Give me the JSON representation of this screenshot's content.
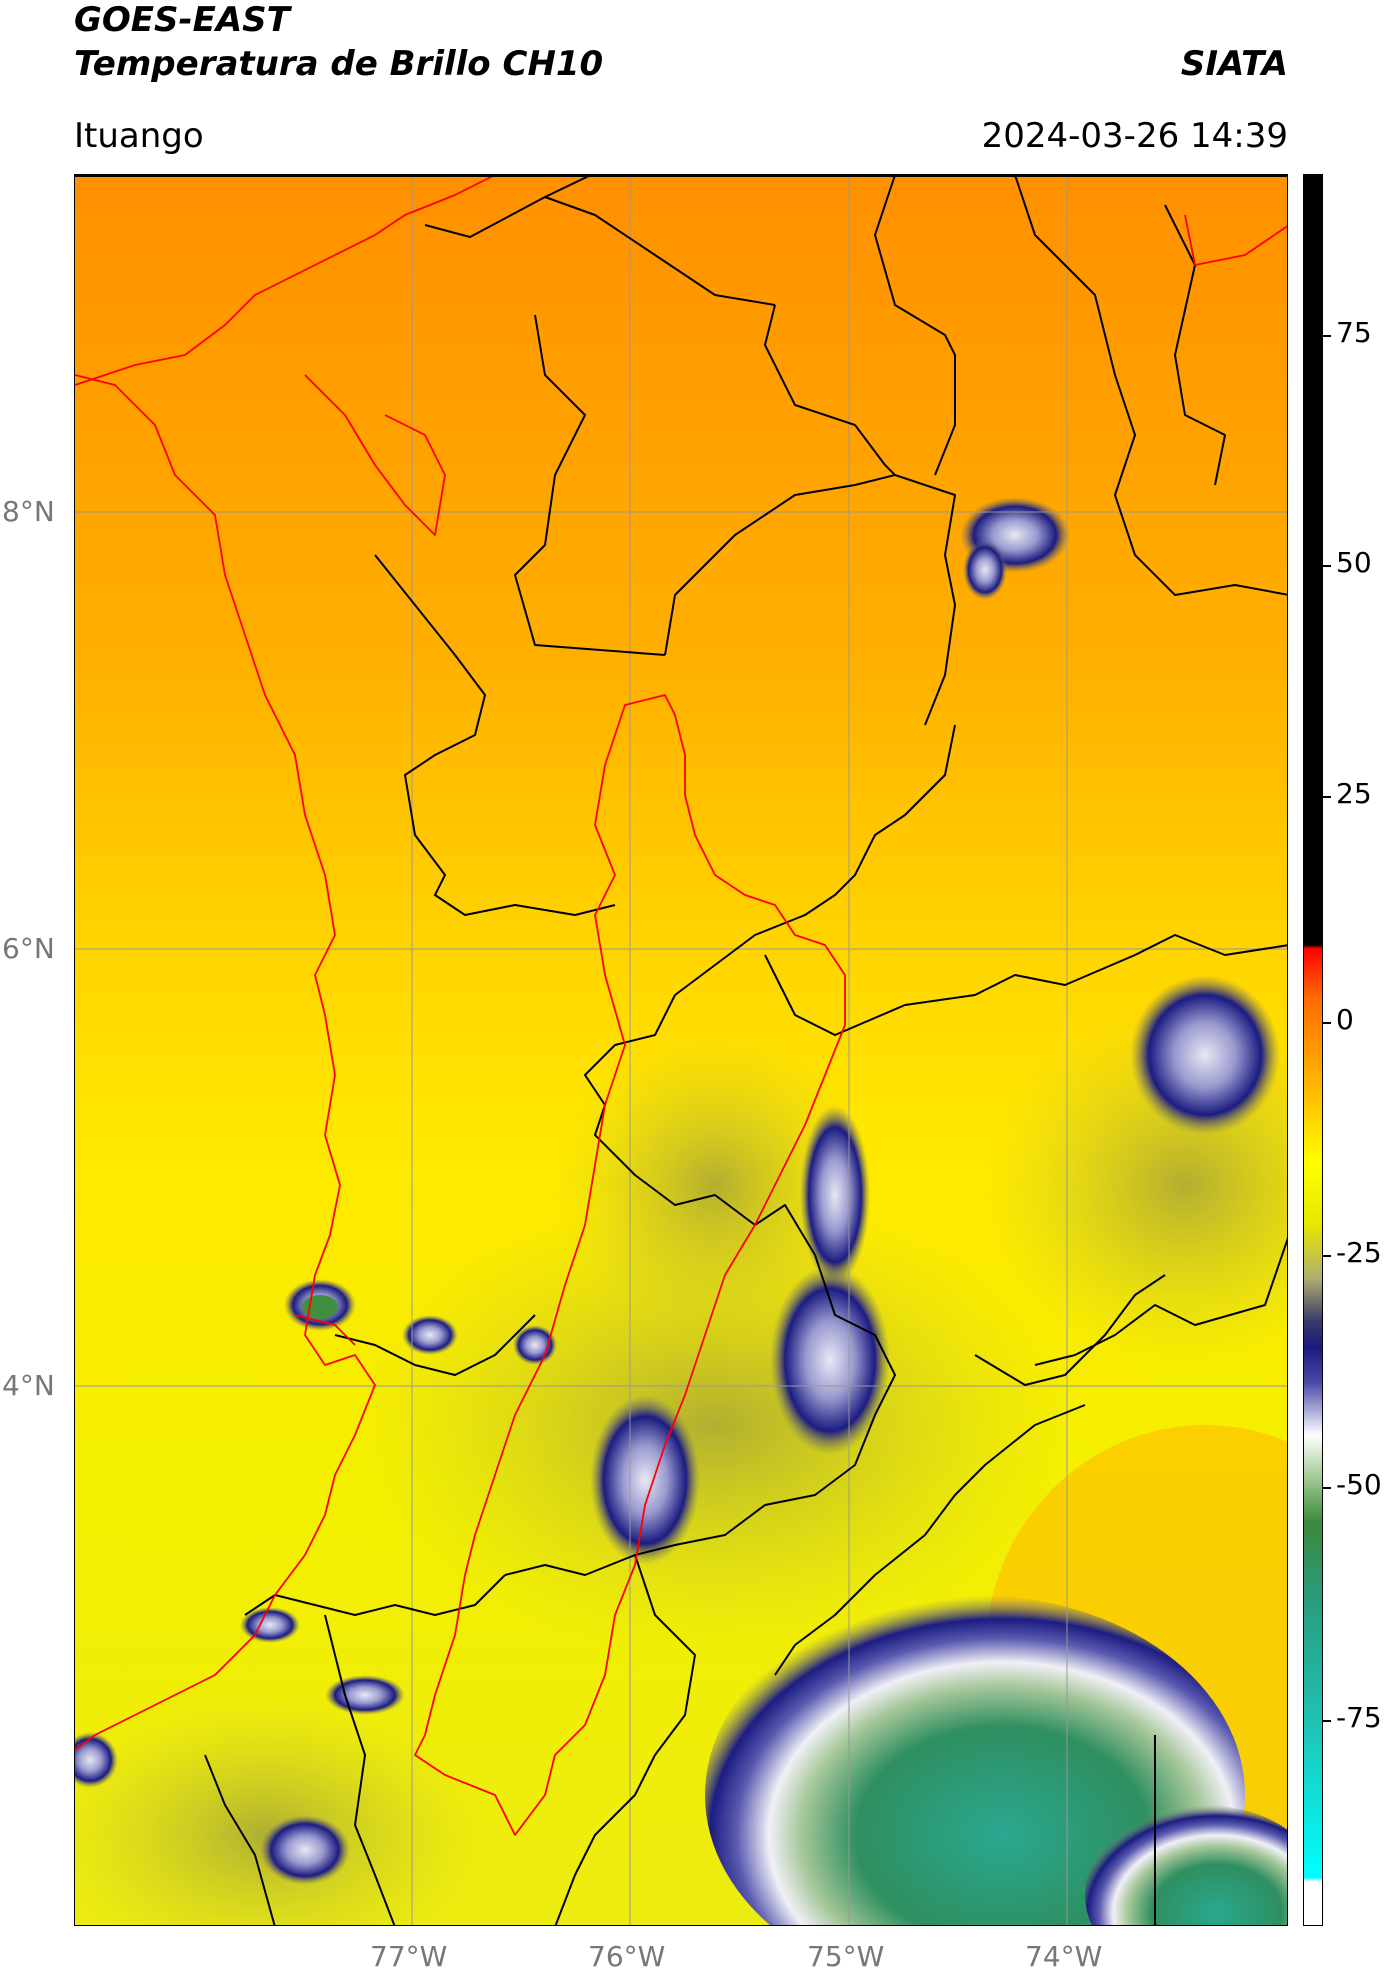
{
  "header": {
    "satellite": "GOES-EAST",
    "product": "Temperatura de Brillo CH10",
    "agency": "SIATA",
    "region": "Ituango",
    "timestamp": "2024-03-26 14:39"
  },
  "map": {
    "latitude_labels": [
      "8°N",
      "6°N",
      "4°N"
    ],
    "longitude_labels": [
      "77°W",
      "76°W",
      "75°W",
      "74°W"
    ],
    "colors": {
      "warm_background": "#ff9a00",
      "mid_background": "#ffdd00",
      "cool_background": "#f2f200",
      "cloud_dark": "#1c1c82",
      "cloud_light": "#e6e6f2",
      "cloud_green": "#2e9a70",
      "boundary": "#000000",
      "basin_outline": "#ff0000",
      "gridline": "#999999"
    }
  },
  "colorbar": {
    "ticks": [
      "75",
      "50",
      "25",
      "0",
      "-25",
      "-50",
      "-75"
    ]
  }
}
